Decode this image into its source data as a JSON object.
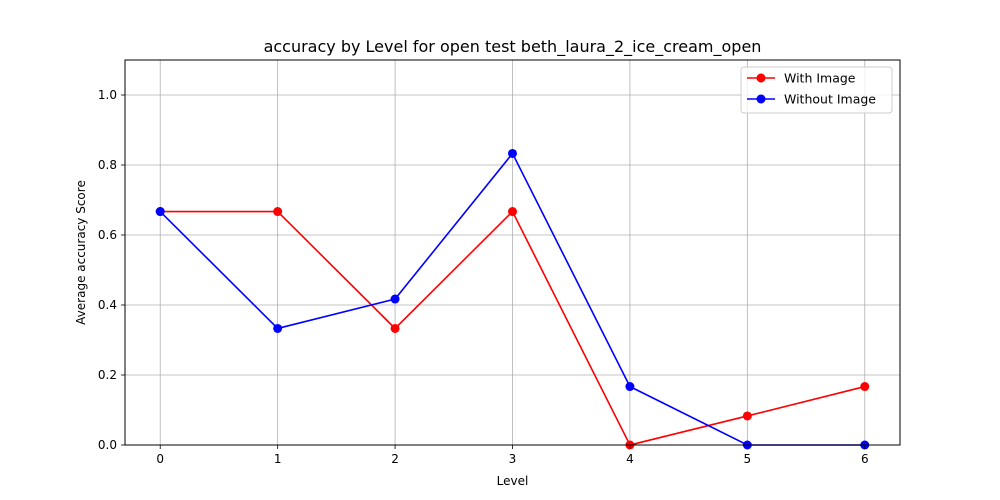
{
  "chart_data": {
    "type": "line",
    "title": "accuracy by Level for open test beth_laura_2_ice_cream_open",
    "xlabel": "Level",
    "ylabel": "Average accuracy Score",
    "x": [
      0,
      1,
      2,
      3,
      4,
      5,
      6
    ],
    "xticks": [
      "0",
      "1",
      "2",
      "3",
      "4",
      "5",
      "6"
    ],
    "yticks": [
      "0.0",
      "0.2",
      "0.4",
      "0.6",
      "0.8",
      "1.0"
    ],
    "xlim": [
      -0.3,
      6.3
    ],
    "ylim": [
      0,
      1.1
    ],
    "grid": true,
    "legend_position": "top-right",
    "series": [
      {
        "name": "With Image",
        "color": "#ff0000",
        "marker": "circle",
        "values": [
          0.667,
          0.667,
          0.333,
          0.667,
          0.0,
          0.083,
          0.167
        ]
      },
      {
        "name": "Without Image",
        "color": "#0000ff",
        "marker": "circle",
        "values": [
          0.667,
          0.333,
          0.417,
          0.833,
          0.167,
          0.0,
          0.0
        ]
      }
    ]
  }
}
